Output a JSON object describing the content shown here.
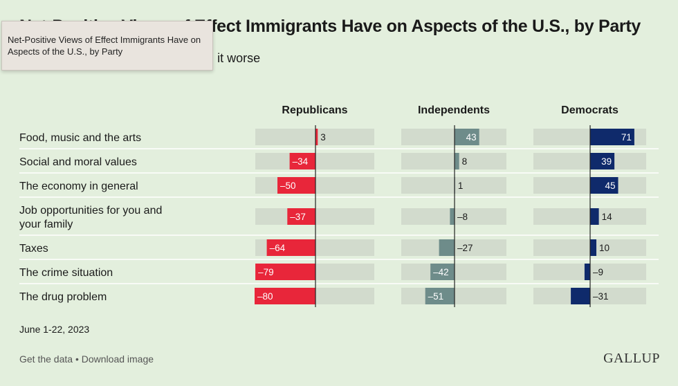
{
  "title": "Net-Positive Views of Effect Immigrants Have on Aspects of the U.S., by Party",
  "subtitle": "% making it better minus % making it worse",
  "tooltip": "Net-Positive Views of Effect Immigrants Have on Aspects of the U.S., by Party",
  "date": "June 1-22, 2023",
  "footer": {
    "get_data": "Get the data",
    "separator": " • ",
    "download": "Download image",
    "logo": "GALLUP"
  },
  "colors": {
    "background": "#e3efdd",
    "track": "#d2dbcd",
    "republicans": "#e8263a",
    "independents": "#6e8c8a",
    "democrats": "#0f2a6b"
  },
  "chart_data": {
    "type": "bar",
    "orientation": "horizontal",
    "categories": [
      "Food, music and the arts",
      "Social and moral values",
      "The economy in general",
      "Job opportunities for you and your family",
      "Taxes",
      "The crime situation",
      "The drug problem"
    ],
    "series": [
      {
        "name": "Republicans",
        "values": [
          3,
          -34,
          -50,
          -37,
          -64,
          -79,
          -80
        ]
      },
      {
        "name": "Independents",
        "values": [
          43,
          8,
          1,
          -8,
          -27,
          -42,
          -51
        ]
      },
      {
        "name": "Democrats",
        "values": [
          71,
          39,
          45,
          14,
          10,
          -9,
          -31
        ]
      }
    ],
    "labels": {
      "Republicans": [
        "3",
        "–34",
        "–50",
        "–37",
        "–64",
        "–79",
        "–80"
      ],
      "Independents": [
        "43",
        "8",
        "1",
        "–8",
        "–27",
        "–42",
        "–51"
      ],
      "Democrats": [
        "71",
        "39",
        "45",
        "14",
        "10",
        "–9",
        "–31"
      ]
    },
    "xlim": [
      -80,
      80
    ]
  }
}
